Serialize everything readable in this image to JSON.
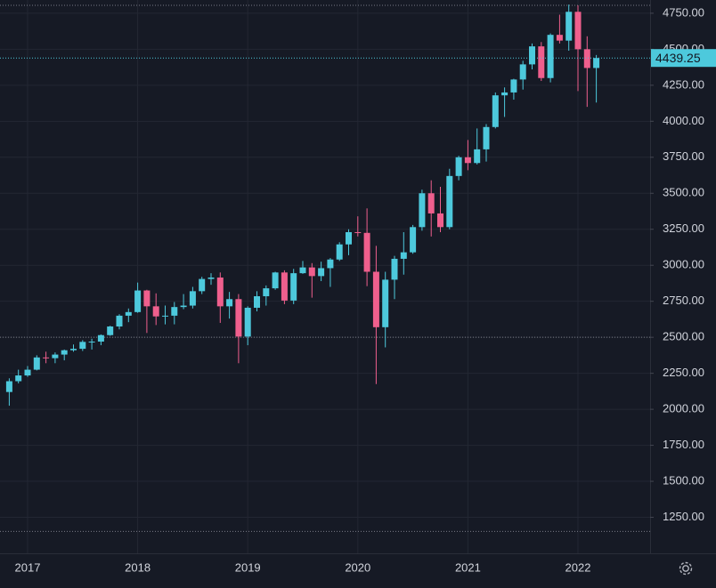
{
  "chart_data": {
    "type": "candlestick",
    "categories": [
      null,
      null,
      "2017",
      null,
      null,
      null,
      null,
      null,
      null,
      null,
      null,
      null,
      null,
      null,
      "2018",
      null,
      null,
      null,
      null,
      null,
      null,
      null,
      null,
      null,
      null,
      null,
      "2019",
      null,
      null,
      null,
      null,
      null,
      null,
      null,
      null,
      null,
      null,
      null,
      "2020",
      null,
      null,
      null,
      null,
      null,
      null,
      null,
      null,
      null,
      null,
      null,
      "2021",
      null,
      null,
      null,
      null,
      null,
      null,
      null,
      null,
      null,
      null,
      null,
      "2022",
      null,
      null
    ],
    "open": [
      2120,
      2195,
      2235,
      2275,
      2360,
      2355,
      2380,
      2410,
      2420,
      2468,
      2470,
      2515,
      2575,
      2650,
      2675,
      2825,
      2715,
      2645,
      2650,
      2710,
      2720,
      2820,
      2905,
      2915,
      2715,
      2765,
      2505,
      2705,
      2785,
      2840,
      2950,
      2755,
      2945,
      2985,
      2925,
      2980,
      3040,
      3145,
      3230,
      3225,
      2955,
      2570,
      2900,
      3045,
      3090,
      3265,
      3500,
      3360,
      3265,
      3620,
      3750,
      3710,
      3805,
      3960,
      4180,
      4200,
      4290,
      4395,
      4520,
      4300,
      4600,
      4560,
      4760,
      4500,
      4370
    ],
    "high": [
      2215,
      2275,
      2300,
      2375,
      2400,
      2395,
      2415,
      2450,
      2480,
      2490,
      2520,
      2580,
      2660,
      2700,
      2880,
      2830,
      2805,
      2720,
      2745,
      2800,
      2850,
      2920,
      2945,
      2950,
      2815,
      2800,
      2715,
      2820,
      2860,
      2955,
      2965,
      2975,
      3030,
      3015,
      3025,
      3050,
      3160,
      3250,
      3340,
      3395,
      3135,
      2955,
      3065,
      3230,
      3280,
      3525,
      3590,
      3545,
      3670,
      3760,
      3870,
      3950,
      3980,
      4200,
      4235,
      4295,
      4420,
      4540,
      4550,
      4610,
      4740,
      4810,
      4805,
      4590,
      4460
    ],
    "low": [
      2025,
      2180,
      2225,
      2270,
      2320,
      2320,
      2340,
      2400,
      2405,
      2415,
      2445,
      2510,
      2555,
      2605,
      2670,
      2530,
      2585,
      2590,
      2590,
      2695,
      2700,
      2800,
      2865,
      2600,
      2630,
      2320,
      2445,
      2680,
      2720,
      2830,
      2730,
      2730,
      2940,
      2775,
      2890,
      2850,
      3030,
      3070,
      3200,
      2855,
      2175,
      2430,
      2765,
      2935,
      3080,
      3240,
      3200,
      3230,
      3250,
      3590,
      3660,
      3700,
      3720,
      3950,
      4030,
      4150,
      4220,
      4360,
      4280,
      4270,
      4540,
      4490,
      4210,
      4100,
      4130
    ],
    "close": [
      2195,
      2235,
      2275,
      2360,
      2355,
      2380,
      2410,
      2420,
      2468,
      2470,
      2515,
      2575,
      2650,
      2675,
      2825,
      2715,
      2645,
      2650,
      2710,
      2720,
      2820,
      2905,
      2915,
      2715,
      2765,
      2505,
      2705,
      2785,
      2840,
      2950,
      2755,
      2945,
      2985,
      2925,
      2980,
      3040,
      3145,
      3230,
      3225,
      2955,
      2570,
      2900,
      3045,
      3090,
      3265,
      3500,
      3360,
      3265,
      3620,
      3750,
      3710,
      3805,
      3960,
      4180,
      4200,
      4290,
      4395,
      4520,
      4300,
      4600,
      4560,
      4760,
      4500,
      4370,
      4439.25
    ],
    "up_color": "#4dc9dc",
    "down_color": "#ef5f8d",
    "ylim": [
      1000,
      4842
    ],
    "yticks": [
      {
        "value": 1250,
        "label": "1250.00"
      },
      {
        "value": 1500,
        "label": "1500.00"
      },
      {
        "value": 1750,
        "label": "1750.00"
      },
      {
        "value": 2000,
        "label": "2000.00"
      },
      {
        "value": 2250,
        "label": "2250.00"
      },
      {
        "value": 2500,
        "label": "2500.00"
      },
      {
        "value": 2750,
        "label": "2750.00"
      },
      {
        "value": 3000,
        "label": "3000.00"
      },
      {
        "value": 3250,
        "label": "3250.00"
      },
      {
        "value": 3500,
        "label": "3500.00"
      },
      {
        "value": 3750,
        "label": "3750.00"
      },
      {
        "value": 4000,
        "label": "4000.00"
      },
      {
        "value": 4250,
        "label": "4250.00"
      },
      {
        "value": 4500,
        "label": "4500.00"
      },
      {
        "value": 4750,
        "label": "4750.00"
      }
    ],
    "horizontal_lines": [
      4805,
      2500,
      1152
    ],
    "grid": true
  }
}
